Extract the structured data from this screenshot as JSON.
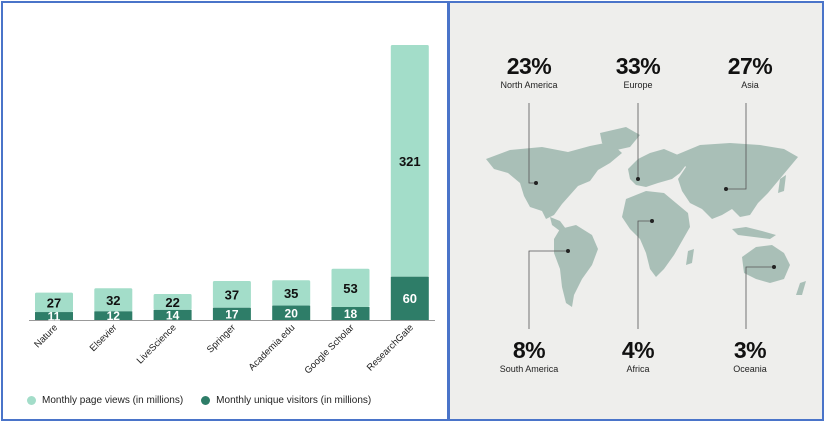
{
  "chart_data": [
    {
      "type": "bar",
      "stacked": true,
      "categories": [
        "Nature",
        "Elsevier",
        "LiveScience",
        "Springer",
        "Academia.edu",
        "Google Scholar",
        "ResearchGate"
      ],
      "series": [
        {
          "name": "Monthly unique visitors (in millions)",
          "values": [
            11,
            12,
            14,
            17,
            20,
            18,
            60
          ],
          "color": "#2e7d68"
        },
        {
          "name": "Monthly page views (in millions)",
          "values": [
            27,
            32,
            22,
            37,
            35,
            53,
            321
          ],
          "color": "#a3ddc9"
        }
      ],
      "ylim": [
        0,
        381
      ],
      "grid": false,
      "legend_placement": "bottom-left"
    }
  ],
  "legend": [
    {
      "label": "Monthly page views (in millions)",
      "color": "#a3ddc9"
    },
    {
      "label": "Monthly unique visitors (in millions)",
      "color": "#2e7d68"
    }
  ],
  "map": {
    "background": "#eeeeec",
    "land_color": "#a9bfb7",
    "regions": [
      {
        "pct": "23%",
        "name": "North America"
      },
      {
        "pct": "33%",
        "name": "Europe"
      },
      {
        "pct": "27%",
        "name": "Asia"
      },
      {
        "pct": "8%",
        "name": "South America"
      },
      {
        "pct": "4%",
        "name": "Africa"
      },
      {
        "pct": "3%",
        "name": "Oceania"
      }
    ]
  }
}
